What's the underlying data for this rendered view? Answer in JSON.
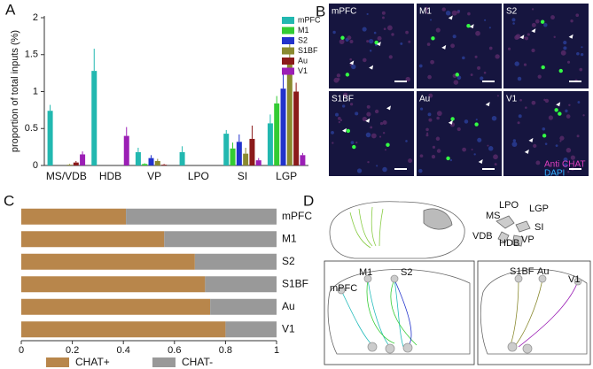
{
  "panels": [
    "A",
    "B",
    "C",
    "D"
  ],
  "chart_data": [
    {
      "type": "bar",
      "y_label": "proportion of total inputs  (%)",
      "categories": [
        "MS/VDB",
        "HDB",
        "VP",
        "LPO",
        "SI",
        "LGP"
      ],
      "ylim": [
        0,
        2
      ],
      "yticks": [
        0,
        0.5,
        1,
        1.5,
        2
      ],
      "legend": "upper right",
      "series": [
        {
          "name": "mPFC",
          "color": "#22b8b0",
          "values": [
            0.74,
            1.28,
            0.18,
            0.18,
            0.43,
            0.57
          ],
          "errors": [
            0.08,
            0.3,
            0.06,
            0.08,
            0.05,
            0.12
          ]
        },
        {
          "name": "M1",
          "color": "#33cc33",
          "values": [
            0,
            0,
            0.02,
            0,
            0.23,
            0.84
          ],
          "errors": [
            0,
            0,
            0.01,
            0,
            0.08,
            0.1
          ]
        },
        {
          "name": "S2",
          "color": "#2233cc",
          "values": [
            0,
            0,
            0.1,
            0,
            0.32,
            1.04
          ],
          "errors": [
            0,
            0,
            0.04,
            0,
            0.1,
            0.2
          ]
        },
        {
          "name": "S1BF",
          "color": "#8a8a30",
          "values": [
            0.01,
            0,
            0.06,
            0,
            0.16,
            1.42
          ],
          "errors": [
            0.01,
            0,
            0.03,
            0,
            0.08,
            0.32
          ]
        },
        {
          "name": "Au",
          "color": "#8b1a1a",
          "values": [
            0.04,
            0,
            0.01,
            0,
            0.36,
            1.0
          ],
          "errors": [
            0.02,
            0,
            0.01,
            0,
            0.18,
            0.12
          ]
        },
        {
          "name": "V1",
          "color": "#9b1fb5",
          "values": [
            0.15,
            0.4,
            0,
            0,
            0.07,
            0.14
          ],
          "errors": [
            0.04,
            0.12,
            0,
            0,
            0.03,
            0.03
          ]
        }
      ]
    },
    {
      "type": "bar",
      "orientation": "horizontal",
      "stacked": true,
      "categories": [
        "mPFC",
        "M1",
        "S2",
        "S1BF",
        "Au",
        "V1"
      ],
      "xlim": [
        0,
        1
      ],
      "xticks": [
        0,
        0.2,
        0.4,
        0.6,
        0.8,
        1
      ],
      "legend": "bottom",
      "series": [
        {
          "name": "CHAT+",
          "color": "#b8864b",
          "values": [
            0.41,
            0.56,
            0.68,
            0.72,
            0.74,
            0.8
          ]
        },
        {
          "name": "CHAT-",
          "color": "#999999",
          "values": [
            0.59,
            0.44,
            0.32,
            0.28,
            0.26,
            0.2
          ]
        }
      ]
    }
  ],
  "images": {
    "tiles": [
      "mPFC",
      "M1",
      "S2",
      "S1BF",
      "Au",
      "V1"
    ],
    "legend": [
      "Anti CHAT",
      "DAPI"
    ]
  },
  "diagram": {
    "regions": [
      "LPO",
      "LGP",
      "MS",
      "SI",
      "VDB",
      "HDB",
      "VP"
    ],
    "left_box": [
      "mPFC",
      "M1",
      "S2"
    ],
    "right_box": [
      "S1BF",
      "Au",
      "V1"
    ]
  }
}
